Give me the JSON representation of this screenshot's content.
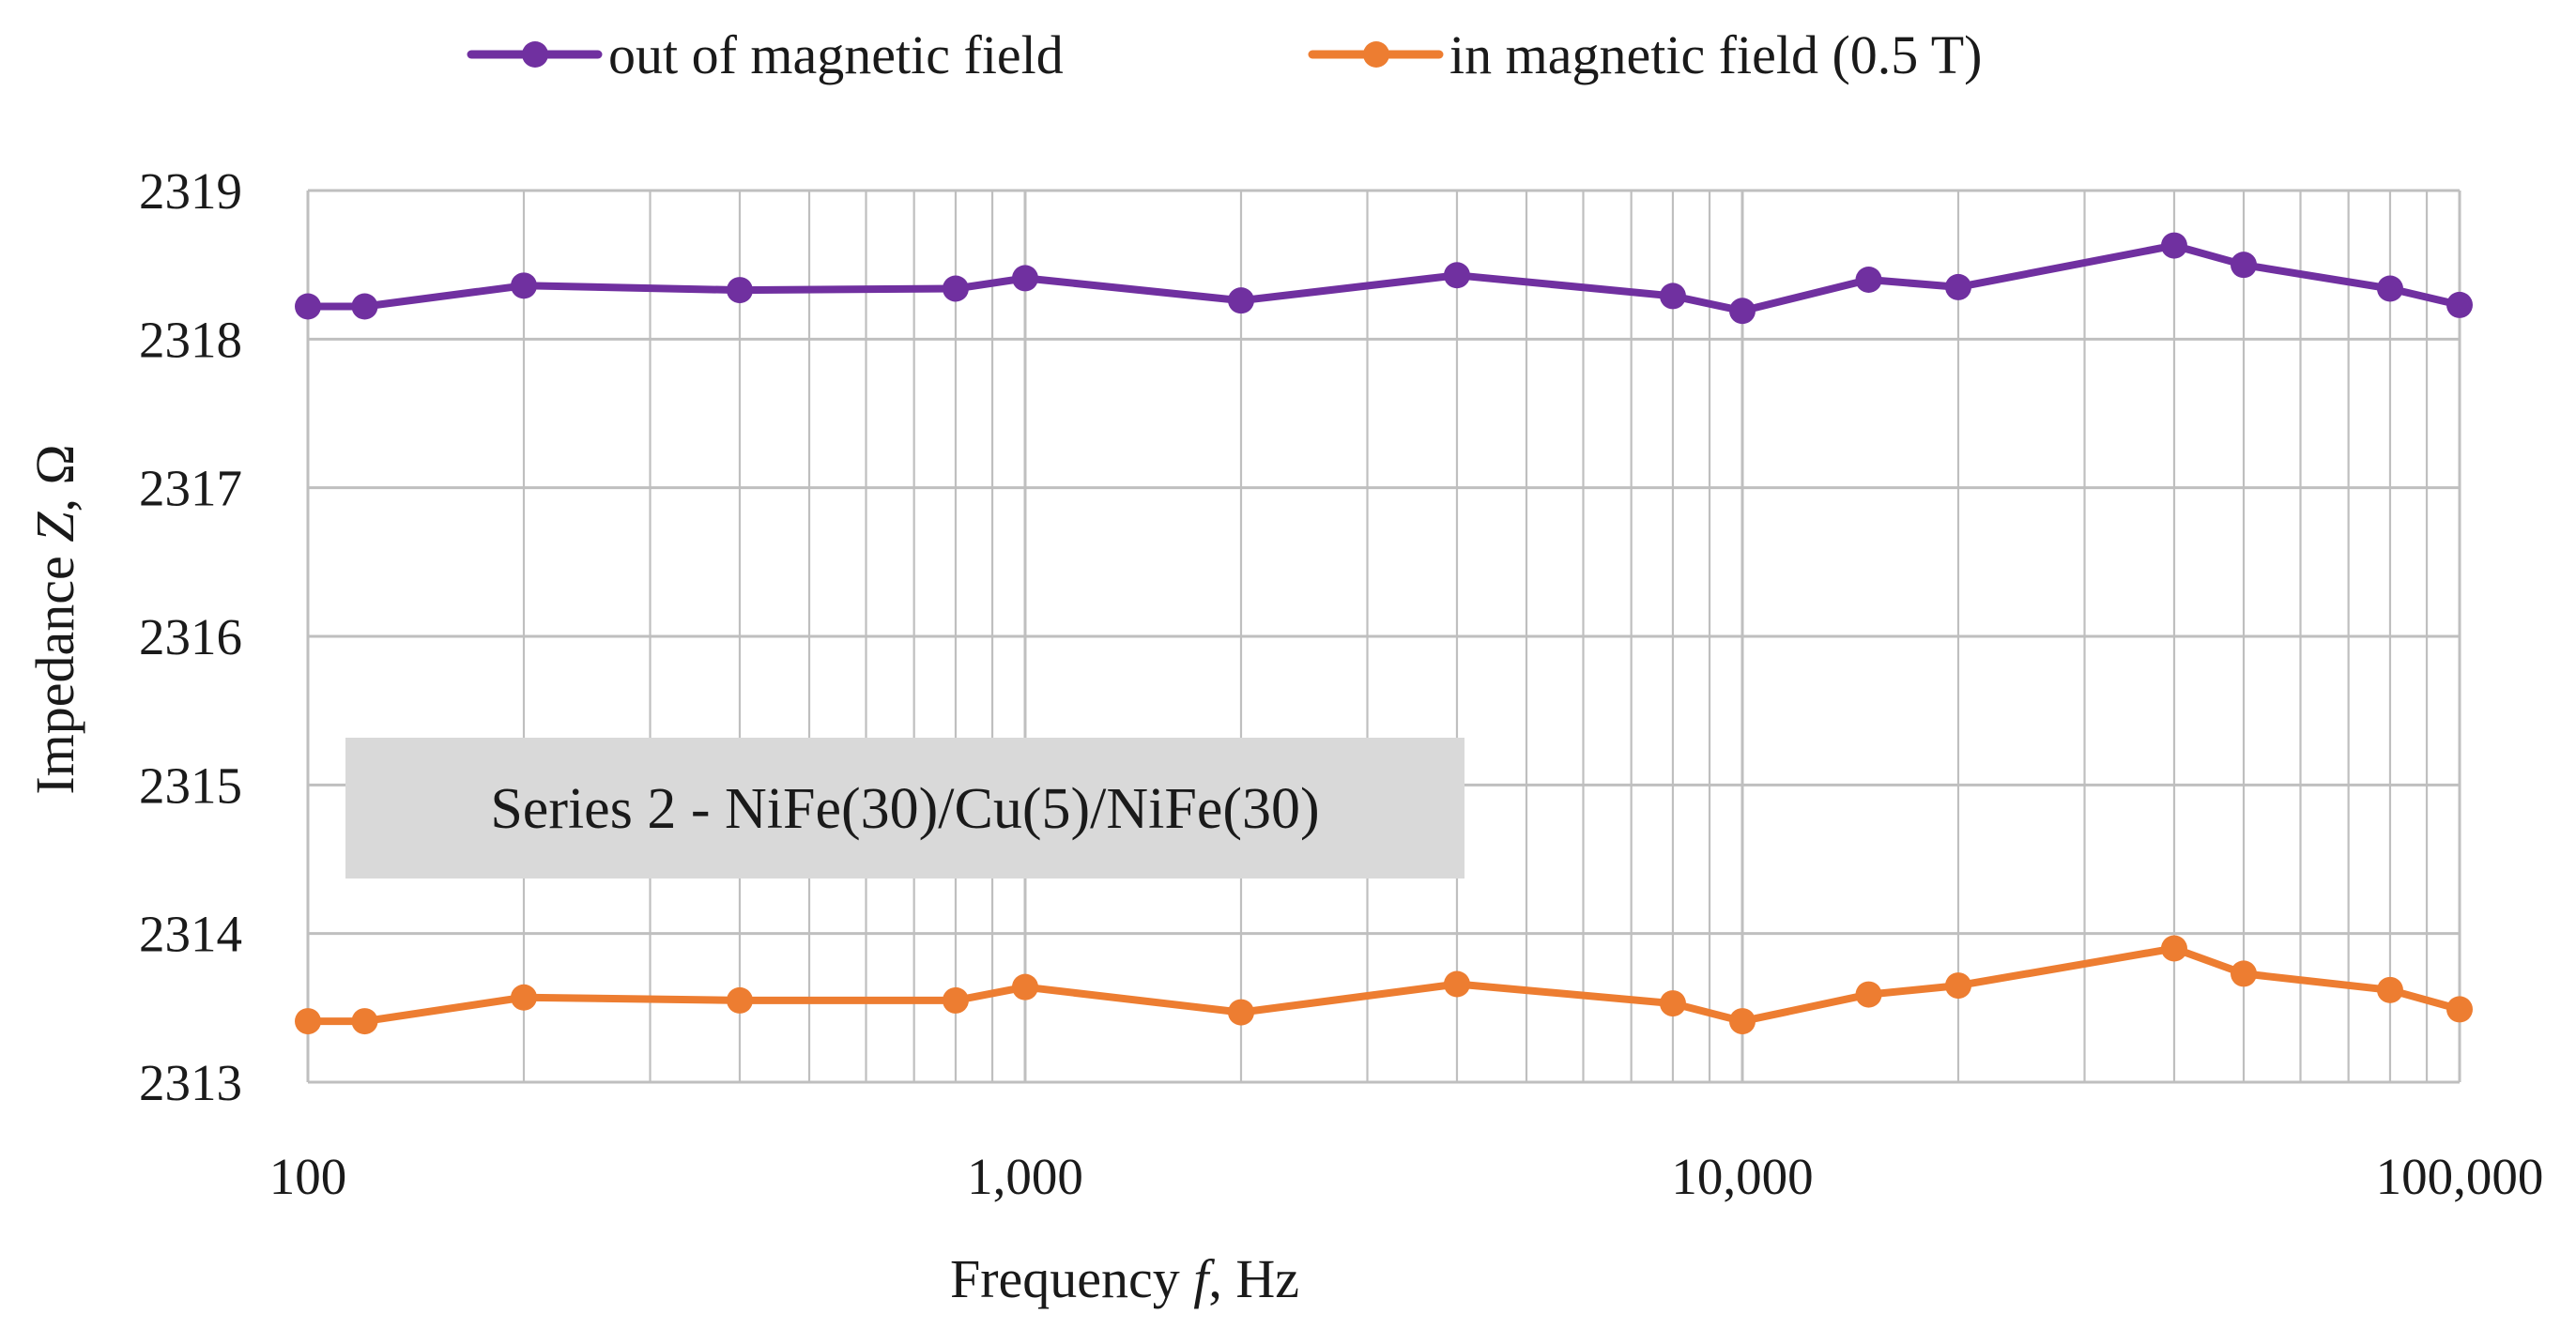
{
  "chart_data": {
    "type": "line",
    "title": "",
    "xlabel": {
      "prefix": "Frequency ",
      "italic": "f",
      "suffix": ", Hz"
    },
    "ylabel": {
      "prefix": "Impedance ",
      "italic": "Z",
      "suffix": ", Ω"
    },
    "x_scale": "log",
    "xlim": [
      100,
      100000
    ],
    "ylim": [
      2313,
      2319
    ],
    "x_ticks": [
      {
        "value": 100,
        "label": "100"
      },
      {
        "value": 1000,
        "label": "1,000"
      },
      {
        "value": 10000,
        "label": "10,000"
      },
      {
        "value": 100000,
        "label": "100,000"
      }
    ],
    "y_ticks": [
      {
        "value": 2313,
        "label": "2313"
      },
      {
        "value": 2314,
        "label": "2314"
      },
      {
        "value": 2315,
        "label": "2315"
      },
      {
        "value": 2316,
        "label": "2316"
      },
      {
        "value": 2317,
        "label": "2317"
      },
      {
        "value": 2318,
        "label": "2318"
      },
      {
        "value": 2319,
        "label": "2319"
      }
    ],
    "grid": true,
    "legend_position": "top",
    "x": [
      100,
      120,
      200,
      400,
      800,
      1000,
      2000,
      4000,
      8000,
      10000,
      15000,
      20000,
      40000,
      50000,
      80000,
      100000
    ],
    "series": [
      {
        "name": "out of magnetic field",
        "color": "#7030A0",
        "values": [
          2318.22,
          2318.22,
          2318.36,
          2318.33,
          2318.34,
          2318.41,
          2318.26,
          2318.43,
          2318.29,
          2318.19,
          2318.4,
          2318.35,
          2318.63,
          2318.5,
          2318.34,
          2318.23
        ]
      },
      {
        "name": "in magnetic field (0.5 T)",
        "color": "#ED7D31",
        "values": [
          2313.41,
          2313.41,
          2313.57,
          2313.55,
          2313.55,
          2313.64,
          2313.47,
          2313.66,
          2313.53,
          2313.41,
          2313.59,
          2313.65,
          2313.9,
          2313.73,
          2313.62,
          2313.49
        ]
      }
    ],
    "annotation": "Series 2 - NiFe(30)/Cu(5)/NiFe(30)",
    "colors": {
      "grid": "#bfbfbf",
      "annotation_bg": "#d9d9d9"
    }
  }
}
